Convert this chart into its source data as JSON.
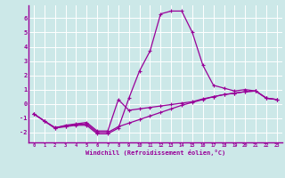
{
  "xlabel": "Windchill (Refroidissement éolien,°C)",
  "background_color": "#cce8e8",
  "grid_color": "#ffffff",
  "line_color": "#990099",
  "xlim": [
    -0.5,
    23.5
  ],
  "ylim": [
    -2.7,
    6.9
  ],
  "xticks": [
    0,
    1,
    2,
    3,
    4,
    5,
    6,
    7,
    8,
    9,
    10,
    11,
    12,
    13,
    14,
    15,
    16,
    17,
    18,
    19,
    20,
    21,
    22,
    23
  ],
  "yticks": [
    -2,
    -1,
    0,
    1,
    2,
    3,
    4,
    5,
    6
  ],
  "series1": [
    [
      0,
      -0.7
    ],
    [
      1,
      -1.2
    ],
    [
      2,
      -1.7
    ],
    [
      3,
      -1.6
    ],
    [
      4,
      -1.5
    ],
    [
      5,
      -1.5
    ],
    [
      6,
      -2.1
    ],
    [
      7,
      -2.1
    ],
    [
      8,
      -1.7
    ],
    [
      9,
      0.4
    ],
    [
      10,
      2.3
    ],
    [
      11,
      3.7
    ],
    [
      12,
      6.3
    ],
    [
      13,
      6.5
    ],
    [
      14,
      6.5
    ],
    [
      15,
      5.0
    ],
    [
      16,
      2.7
    ],
    [
      17,
      1.3
    ],
    [
      18,
      1.1
    ],
    [
      19,
      0.9
    ],
    [
      20,
      1.0
    ],
    [
      21,
      0.9
    ],
    [
      22,
      0.4
    ],
    [
      23,
      0.3
    ]
  ],
  "series2": [
    [
      0,
      -0.7
    ],
    [
      1,
      -1.2
    ],
    [
      2,
      -1.7
    ],
    [
      3,
      -1.5
    ],
    [
      4,
      -1.4
    ],
    [
      5,
      -1.3
    ],
    [
      6,
      -1.9
    ],
    [
      7,
      -1.9
    ],
    [
      8,
      0.3
    ],
    [
      9,
      -0.45
    ],
    [
      10,
      -0.35
    ],
    [
      11,
      -0.25
    ],
    [
      12,
      -0.15
    ],
    [
      13,
      -0.05
    ],
    [
      14,
      0.05
    ],
    [
      15,
      0.15
    ],
    [
      16,
      0.35
    ],
    [
      17,
      0.5
    ],
    [
      18,
      0.65
    ],
    [
      19,
      0.75
    ],
    [
      20,
      0.85
    ],
    [
      21,
      0.9
    ],
    [
      22,
      0.4
    ],
    [
      23,
      0.3
    ]
  ],
  "series3": [
    [
      0,
      -0.7
    ],
    [
      1,
      -1.2
    ],
    [
      2,
      -1.65
    ],
    [
      3,
      -1.55
    ],
    [
      4,
      -1.45
    ],
    [
      5,
      -1.4
    ],
    [
      6,
      -2.0
    ],
    [
      7,
      -2.0
    ],
    [
      8,
      -1.6
    ],
    [
      9,
      -1.35
    ],
    [
      10,
      -1.1
    ],
    [
      11,
      -0.85
    ],
    [
      12,
      -0.6
    ],
    [
      13,
      -0.35
    ],
    [
      14,
      -0.1
    ],
    [
      15,
      0.1
    ],
    [
      16,
      0.3
    ],
    [
      17,
      0.5
    ],
    [
      18,
      0.65
    ],
    [
      19,
      0.75
    ],
    [
      20,
      0.85
    ],
    [
      21,
      0.9
    ],
    [
      22,
      0.4
    ],
    [
      23,
      0.3
    ]
  ]
}
